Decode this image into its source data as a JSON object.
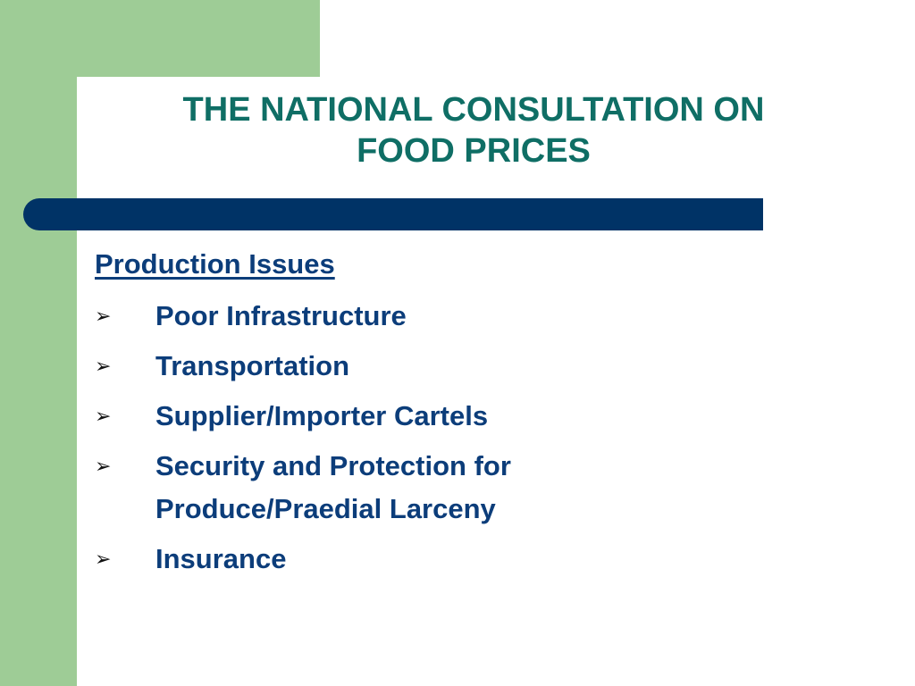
{
  "slide": {
    "title_lines": [
      "THE NATIONAL CONSULTATION ON",
      "FOOD PRICES"
    ],
    "section_heading": "Production Issues",
    "bullet_icon": "arrowhead-bullet-icon",
    "bullets": [
      {
        "lines": [
          "Poor Infrastructure"
        ]
      },
      {
        "lines": [
          "Transportation"
        ]
      },
      {
        "lines": [
          "Supplier/Importer Cartels"
        ]
      },
      {
        "lines": [
          "Security and Protection for",
          "Produce/Praedial Larceny"
        ]
      },
      {
        "lines": [
          "Insurance"
        ]
      }
    ]
  },
  "colors": {
    "title": "#0f6e65",
    "body_text": "#0c3d7a",
    "accent_green": "#9ecc96",
    "divider_bar": "#003366",
    "background": "#ffffff"
  }
}
